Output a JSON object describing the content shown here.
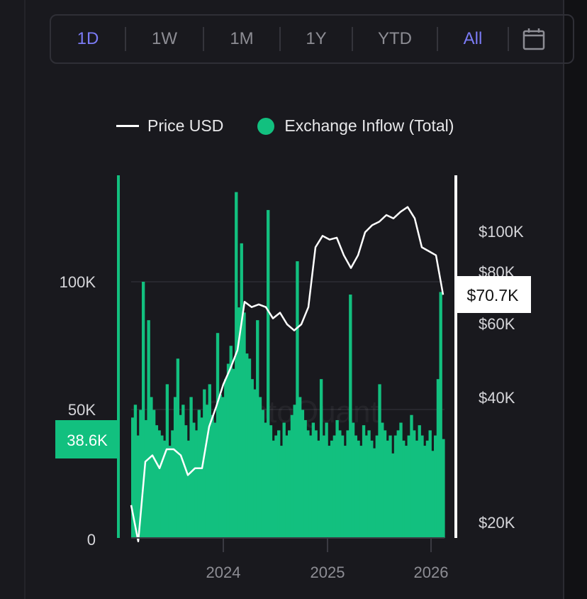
{
  "toolbar": {
    "ranges": [
      "1D",
      "1W",
      "1M",
      "1Y",
      "YTD",
      "All"
    ],
    "active": [
      "1D",
      "All"
    ],
    "calendar_icon": "calendar-icon"
  },
  "legend": {
    "price": "Price USD",
    "inflow": "Exchange Inflow (Total)"
  },
  "colors": {
    "inflow": "#12c07f",
    "price": "#ffffff",
    "accent": "#7b7bf5",
    "background": "#19191e"
  },
  "chart_data": {
    "type": "bar+line",
    "watermark": "CryptoQuant",
    "x_range_years": [
      2023.11,
      2026.13
    ],
    "x_ticks": [
      "2024",
      "2025",
      "2026"
    ],
    "y_left": {
      "ticks": [
        "0",
        "50K",
        "100K"
      ],
      "values": [
        0,
        50000,
        100000
      ],
      "current_label": "38.6K"
    },
    "y_right": {
      "scale": "log",
      "ticks": [
        "$20K",
        "$40K",
        "$60K",
        "$80K",
        "$100K"
      ],
      "values": [
        20000,
        40000,
        60000,
        80000,
        100000
      ],
      "current_label": "$70.7K"
    },
    "series": [
      {
        "name": "Exchange Inflow (Total)",
        "unit": "K",
        "type": "bar",
        "values": [
          47,
          52,
          40,
          50,
          100,
          46,
          85,
          55,
          50,
          44,
          42,
          40,
          38,
          60,
          36,
          42,
          55,
          70,
          48,
          52,
          44,
          38,
          55,
          45,
          42,
          50,
          47,
          58,
          52,
          60,
          48,
          45,
          80,
          56,
          55,
          62,
          68,
          75,
          66,
          135,
          90,
          115,
          88,
          72,
          70,
          62,
          58,
          85,
          55,
          50,
          45,
          128,
          44,
          38,
          40,
          42,
          36,
          45,
          40,
          42,
          48,
          52,
          108,
          55,
          50,
          46,
          42,
          40,
          45,
          42,
          38,
          62,
          40,
          45,
          36,
          38,
          40,
          46,
          42,
          40,
          36,
          42,
          95,
          45,
          40,
          38,
          36,
          44,
          40,
          42,
          38,
          35,
          40,
          60,
          45,
          42,
          38,
          40,
          33,
          40,
          42,
          45,
          38,
          36,
          40,
          48,
          42,
          38,
          44,
          40,
          36,
          38,
          42,
          34,
          40,
          62,
          96,
          38.6
        ]
      },
      {
        "name": "Price USD",
        "unit": "K",
        "type": "line",
        "values": [
          22,
          18,
          28,
          29,
          27,
          30,
          30,
          29,
          26,
          27,
          27,
          34,
          38,
          43,
          47,
          52,
          68,
          66,
          67,
          66,
          62,
          64,
          60,
          58,
          60,
          66,
          92,
          98,
          96,
          97,
          88,
          82,
          88,
          100,
          104,
          106,
          110,
          108,
          112,
          115,
          108,
          92,
          90,
          88,
          70.7
        ]
      }
    ]
  }
}
